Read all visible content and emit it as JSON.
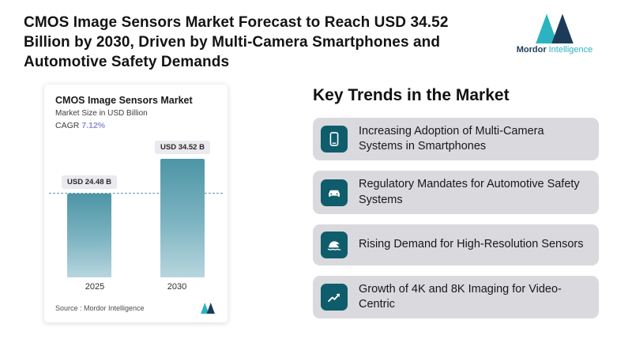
{
  "header": {
    "title": "CMOS Image Sensors Market Forecast to Reach USD 34.52 Billion by 2030, Driven by Multi-Camera Smartphones and Automotive Safety Demands",
    "logo": {
      "primary": "Mordor",
      "secondary": "Intelligence"
    }
  },
  "chart_card": {
    "title": "CMOS Image Sensors Market",
    "subtitle": "Market Size in USD Billion",
    "cagr_label": "CAGR",
    "cagr_value": "7.12%",
    "source": "Source :  Mordor Intelligence"
  },
  "chart_data": {
    "type": "bar",
    "title": "CMOS Image Sensors Market",
    "ylabel": "Market Size in USD Billion",
    "categories": [
      "2025",
      "2030"
    ],
    "values": [
      24.48,
      34.52
    ],
    "bar_labels": [
      "USD 24.48 B",
      "USD 34.52 B"
    ],
    "cagr": "7.12%",
    "ylim": [
      0,
      36
    ],
    "reference_line": 24.48,
    "legend": "none",
    "grid": false
  },
  "trends": {
    "heading": "Key Trends in the Market",
    "items": [
      {
        "icon": "smartphone-icon",
        "text": "Increasing Adoption of Multi-Camera Systems in Smartphones"
      },
      {
        "icon": "car-icon",
        "text": "Regulatory Mandates for Automotive Safety Systems"
      },
      {
        "icon": "wave-icon",
        "text": "Rising Demand for High-Resolution Sensors"
      },
      {
        "icon": "growth-chart-icon",
        "text": "Growth of 4K and 8K Imaging for Video-Centric"
      }
    ]
  },
  "colors": {
    "accent_teal": "#2bb3c0",
    "navy": "#1b3c59",
    "bar_gradient_top": "#4d95a6",
    "bar_gradient_bottom": "#b7d6de",
    "icon_square": "#0f5c6b",
    "trend_card_bg": "#d9d9de",
    "cagr_value": "#8f8edb",
    "dashed_line": "#49869e"
  }
}
